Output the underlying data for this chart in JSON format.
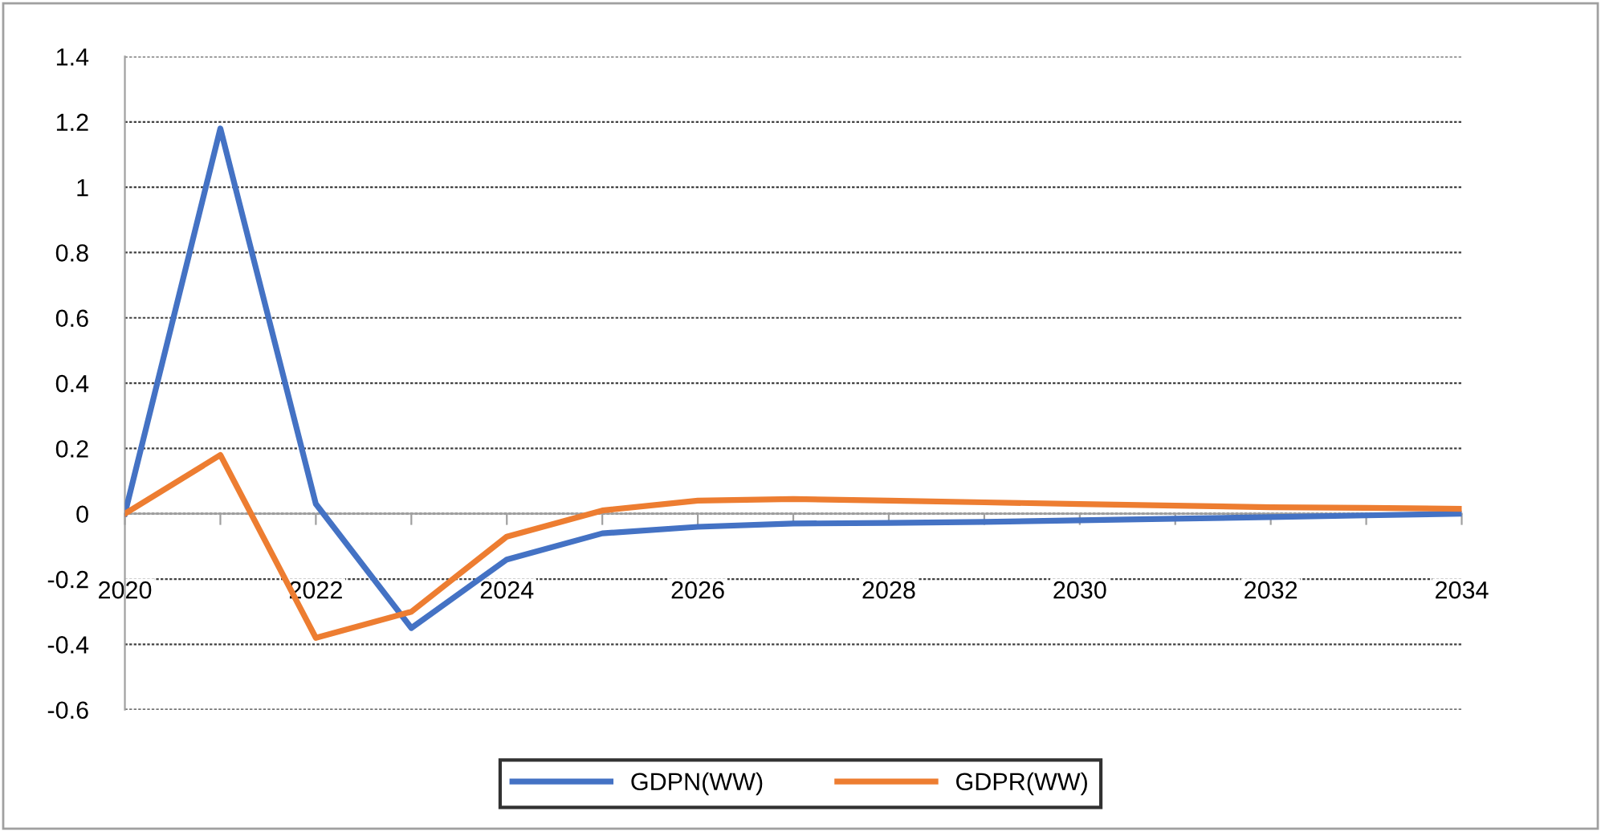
{
  "chart_data": {
    "type": "line",
    "x": [
      2020,
      2021,
      2022,
      2023,
      2024,
      2025,
      2026,
      2027,
      2028,
      2029,
      2030,
      2031,
      2032,
      2033,
      2034
    ],
    "series": [
      {
        "name": "GDPN(WW)",
        "color": "#4472c4",
        "values": [
          0,
          1.18,
          0.03,
          -0.35,
          -0.14,
          -0.06,
          -0.04,
          -0.03,
          -0.028,
          -0.025,
          -0.02,
          -0.015,
          -0.01,
          -0.005,
          0.0
        ]
      },
      {
        "name": "GDPR(WW)",
        "color": "#ed7d31",
        "values": [
          0,
          0.18,
          -0.38,
          -0.3,
          -0.07,
          0.01,
          0.04,
          0.045,
          0.04,
          0.035,
          0.03,
          0.025,
          0.02,
          0.018,
          0.015
        ]
      }
    ],
    "xlim": [
      2020,
      2034
    ],
    "xticks": [
      2020,
      {
        "value": 2021,
        "label": null
      },
      2022,
      {
        "value": 2023,
        "label": null
      },
      2024,
      {
        "value": 2025,
        "label": null
      },
      2026,
      {
        "value": 2027,
        "label": null
      },
      2028,
      {
        "value": 2029,
        "label": null
      },
      2030,
      {
        "value": 2031,
        "label": null
      },
      2032,
      {
        "value": 2033,
        "label": null
      },
      2034
    ],
    "ylim": [
      -0.6,
      1.4
    ],
    "yticks": [
      -0.6,
      -0.4,
      -0.2,
      0,
      0.2,
      0.4,
      0.6,
      0.8,
      1,
      1.2,
      1.4
    ],
    "grid": "y",
    "legend": "bottom",
    "marker": "none",
    "line_style": "solid"
  }
}
